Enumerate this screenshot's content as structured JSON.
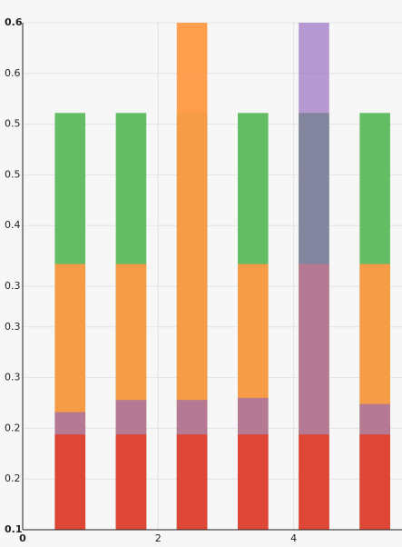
{
  "chart_data": {
    "type": "bar",
    "x": [
      0.7,
      1.6,
      2.5,
      3.4,
      4.3,
      5.2
    ],
    "xlim": [
      0,
      5.6
    ],
    "xticks": [
      0,
      2,
      4
    ],
    "ylim": [
      0.1,
      0.6
    ],
    "yticks": [
      0.1,
      {
        "value": 0.15,
        "label": "0.2"
      },
      {
        "value": 0.2,
        "label": "0.2"
      },
      {
        "value": 0.25,
        "label": "0.3"
      },
      {
        "value": 0.3,
        "label": "0.3"
      },
      {
        "value": 0.34,
        "label": "0.3"
      },
      {
        "value": 0.4,
        "label": "0.4"
      },
      {
        "value": 0.45,
        "label": "0.5"
      },
      {
        "value": 0.5,
        "label": "0.5"
      },
      {
        "value": 0.55,
        "label": "0.6"
      },
      0.6
    ],
    "grid": true,
    "series": [
      {
        "color": "#5cb85c",
        "values": [
          0.511,
          0.511,
          0.511,
          0.511,
          0.511,
          0.511
        ]
      },
      {
        "color": "#ff9a45",
        "values": [
          0.362,
          0.362,
          0.6,
          0.362,
          0.362,
          0.362
        ]
      },
      {
        "color": "#9467bd",
        "values": [
          0.216,
          0.228,
          0.228,
          0.23,
          0.6,
          0.224
        ]
      },
      {
        "color": "#e0452f",
        "values": [
          0.194,
          0.194,
          0.194,
          0.194,
          0.194,
          0.194
        ]
      }
    ]
  }
}
